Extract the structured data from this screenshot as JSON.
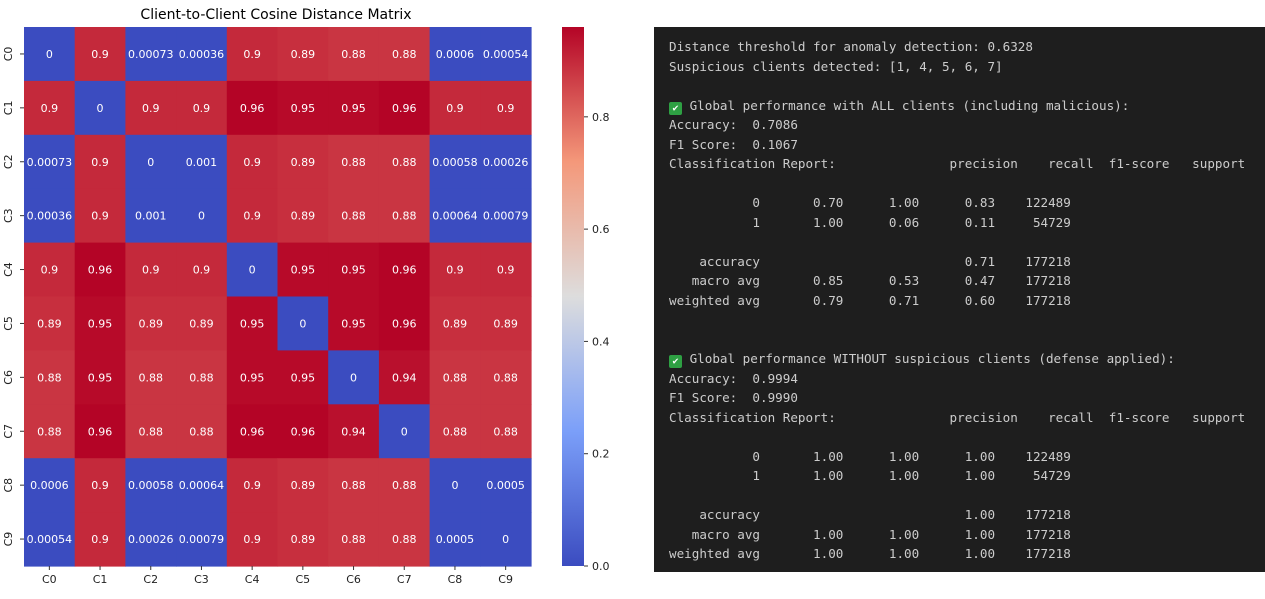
{
  "chart_data": {
    "type": "heatmap",
    "title": "Client-to-Client Cosine Distance Matrix",
    "x_labels": [
      "C0",
      "C1",
      "C2",
      "C3",
      "C4",
      "C5",
      "C6",
      "C7",
      "C8",
      "C9"
    ],
    "y_labels": [
      "C0",
      "C1",
      "C2",
      "C3",
      "C4",
      "C5",
      "C6",
      "C7",
      "C8",
      "C9"
    ],
    "values": [
      [
        0,
        0.9,
        0.00073,
        0.00036,
        0.9,
        0.89,
        0.88,
        0.88,
        0.0006,
        0.00054
      ],
      [
        0.9,
        0,
        0.9,
        0.9,
        0.96,
        0.95,
        0.95,
        0.96,
        0.9,
        0.9
      ],
      [
        0.00073,
        0.9,
        0,
        0.001,
        0.9,
        0.89,
        0.88,
        0.88,
        0.00058,
        0.00026
      ],
      [
        0.00036,
        0.9,
        0.001,
        0,
        0.9,
        0.89,
        0.88,
        0.88,
        0.00064,
        0.00079
      ],
      [
        0.9,
        0.96,
        0.9,
        0.9,
        0,
        0.95,
        0.95,
        0.96,
        0.9,
        0.9
      ],
      [
        0.89,
        0.95,
        0.89,
        0.89,
        0.95,
        0,
        0.95,
        0.96,
        0.89,
        0.89
      ],
      [
        0.88,
        0.95,
        0.88,
        0.88,
        0.95,
        0.95,
        0,
        0.94,
        0.88,
        0.88
      ],
      [
        0.88,
        0.96,
        0.88,
        0.88,
        0.96,
        0.96,
        0.94,
        0,
        0.88,
        0.88
      ],
      [
        0.0006,
        0.9,
        0.00058,
        0.00064,
        0.9,
        0.89,
        0.88,
        0.88,
        0,
        0.0005
      ],
      [
        0.00054,
        0.9,
        0.00026,
        0.00079,
        0.9,
        0.89,
        0.88,
        0.88,
        0.0005,
        0
      ]
    ],
    "colormap": "coolwarm",
    "colorbar": {
      "vmin": 0,
      "vmax": 0.96,
      "ticks": [
        0.0,
        0.2,
        0.4,
        0.6,
        0.8
      ]
    },
    "annotations": true
  },
  "terminal": {
    "lines": [
      {
        "text": "Distance threshold for anomaly detection: 0.6328"
      },
      {
        "text": "Suspicious clients detected: [1, 4, 5, 6, 7]"
      },
      {
        "text": ""
      },
      {
        "check": true,
        "text": " Global performance with ALL clients (including malicious):"
      },
      {
        "text": "Accuracy:  0.7086"
      },
      {
        "text": "F1 Score:  0.1067"
      },
      {
        "text": "Classification Report:               precision    recall  f1-score   support"
      },
      {
        "text": ""
      },
      {
        "text": "           0       0.70      1.00      0.83    122489"
      },
      {
        "text": "           1       1.00      0.06      0.11     54729"
      },
      {
        "text": ""
      },
      {
        "text": "    accuracy                           0.71    177218"
      },
      {
        "text": "   macro avg       0.85      0.53      0.47    177218"
      },
      {
        "text": "weighted avg       0.79      0.71      0.60    177218"
      },
      {
        "text": ""
      },
      {
        "text": ""
      },
      {
        "check": true,
        "text": " Global performance WITHOUT suspicious clients (defense applied):"
      },
      {
        "text": "Accuracy:  0.9994"
      },
      {
        "text": "F1 Score:  0.9990"
      },
      {
        "text": "Classification Report:               precision    recall  f1-score   support"
      },
      {
        "text": ""
      },
      {
        "text": "           0       1.00      1.00      1.00    122489"
      },
      {
        "text": "           1       1.00      1.00      1.00     54729"
      },
      {
        "text": ""
      },
      {
        "text": "    accuracy                           1.00    177218"
      },
      {
        "text": "   macro avg       1.00      1.00      1.00    177218"
      },
      {
        "text": "weighted avg       1.00      1.00      1.00    177218"
      }
    ]
  }
}
